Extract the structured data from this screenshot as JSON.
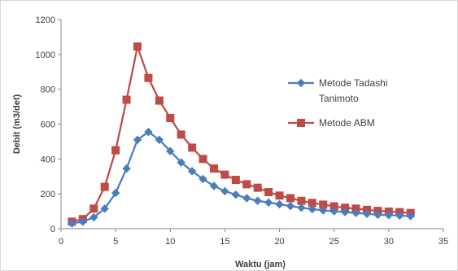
{
  "chart_data": {
    "type": "line",
    "title": "",
    "xlabel": "Waktu (jam)",
    "ylabel": "Debit (m3/det)",
    "xlim": [
      0,
      35
    ],
    "ylim": [
      0,
      1200
    ],
    "xticks": [
      0,
      5,
      10,
      15,
      20,
      25,
      30,
      35
    ],
    "yticks": [
      0,
      200,
      400,
      600,
      800,
      1000,
      1200
    ],
    "grid": false,
    "legend_position": "right",
    "x": [
      1,
      2,
      3,
      4,
      5,
      6,
      7,
      8,
      9,
      10,
      11,
      12,
      13,
      14,
      15,
      16,
      17,
      18,
      19,
      20,
      21,
      22,
      23,
      24,
      25,
      26,
      27,
      28,
      29,
      30,
      31,
      32
    ],
    "series": [
      {
        "name": "Metode Tadashi Tanimoto",
        "legend_lines": [
          "Metode Tadashi",
          "Tanimoto"
        ],
        "color": "#4a7ebb",
        "marker": "diamond",
        "values": [
          30,
          40,
          65,
          115,
          205,
          345,
          510,
          555,
          510,
          445,
          380,
          330,
          285,
          245,
          215,
          195,
          175,
          160,
          150,
          140,
          130,
          120,
          112,
          105,
          100,
          95,
          90,
          85,
          80,
          78,
          75,
          72
        ]
      },
      {
        "name": "Metode ABM",
        "legend_lines": [
          "Metode ABM"
        ],
        "color": "#be4b48",
        "marker": "square",
        "values": [
          40,
          55,
          115,
          240,
          450,
          740,
          1045,
          865,
          735,
          635,
          540,
          465,
          400,
          345,
          310,
          280,
          255,
          235,
          210,
          190,
          175,
          160,
          148,
          138,
          128,
          120,
          115,
          108,
          102,
          98,
          95,
          90
        ]
      }
    ]
  }
}
